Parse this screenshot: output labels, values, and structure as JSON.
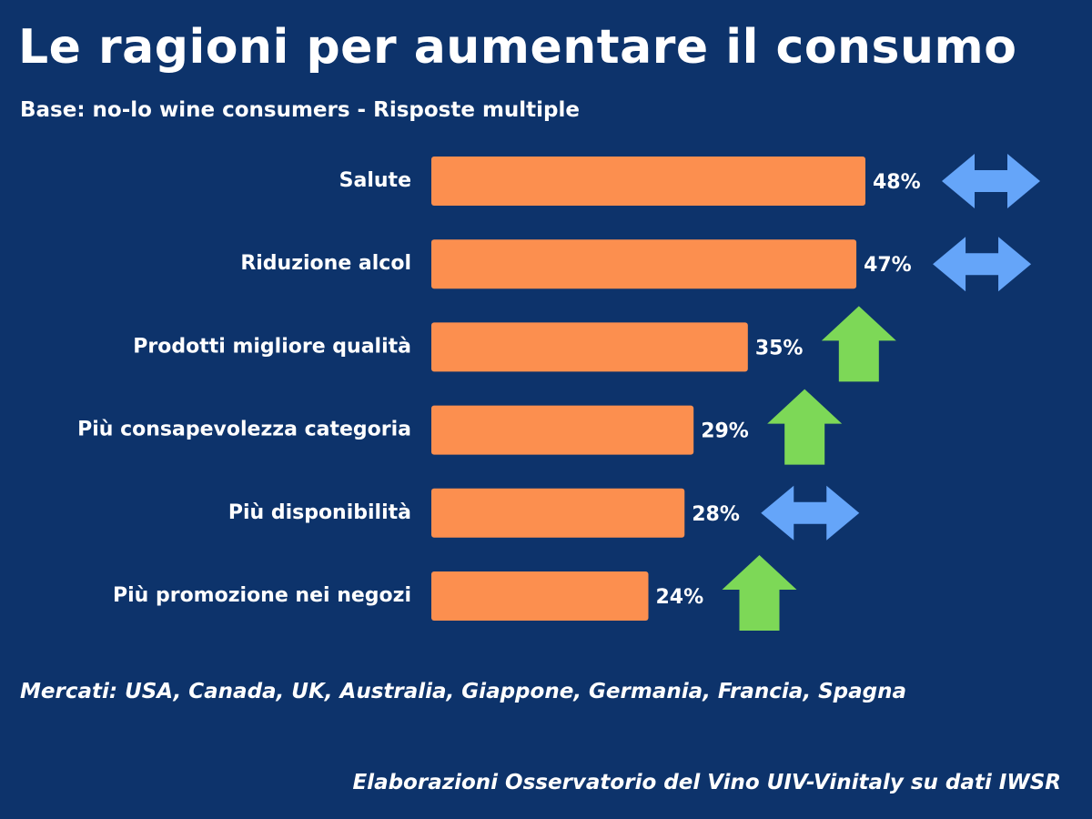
{
  "header": {
    "title": "Le ragioni per aumentare il consumo",
    "subtitle": "Base: no-lo wine consumers - Risposte multiple"
  },
  "footer": {
    "markets": "Mercati: USA, Canada, UK, Australia, Giappone, Germania, Francia, Spagna",
    "source": "Elaborazioni Osservatorio del Vino UIV-Vinitaly su dati IWSR"
  },
  "colors": {
    "background": "#0d336b",
    "bar": "#fc8f4f",
    "arrow_stable": "#65a5f9",
    "arrow_up": "#7dd857"
  },
  "chart_data": {
    "type": "bar",
    "orientation": "horizontal",
    "categories": [
      "Salute",
      "Riduzione alcol",
      "Prodotti migliore qualità",
      "Più consapevolezza categoria",
      "Più disponibilità",
      "Più promozione nei negozi"
    ],
    "values": [
      48,
      47,
      35,
      29,
      28,
      24
    ],
    "value_labels": [
      "48%",
      "47%",
      "35%",
      "29%",
      "28%",
      "24%"
    ],
    "trend_icons": [
      "double-arrow-icon",
      "double-arrow-icon",
      "up-arrow-icon",
      "up-arrow-icon",
      "double-arrow-icon",
      "up-arrow-icon"
    ],
    "grid": false,
    "legend": "none"
  }
}
